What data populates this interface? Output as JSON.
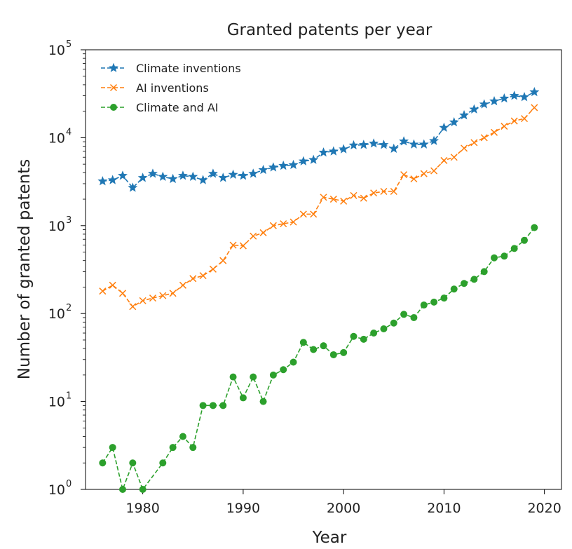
{
  "chart_data": {
    "type": "line",
    "title": "Granted patents per year",
    "xlabel": "Year",
    "ylabel": "Number of granted patents",
    "xlim": [
      1974.3,
      2021.7
    ],
    "ylim": [
      1,
      100000
    ],
    "yscale": "log",
    "xticks": [
      "1980",
      "1990",
      "2000",
      "2010",
      "2020"
    ],
    "yticks": [
      {
        "base": "10",
        "exp": "0"
      },
      {
        "base": "10",
        "exp": "1"
      },
      {
        "base": "10",
        "exp": "2"
      },
      {
        "base": "10",
        "exp": "3"
      },
      {
        "base": "10",
        "exp": "4"
      },
      {
        "base": "10",
        "exp": "5"
      }
    ],
    "legend_position": "top-left",
    "x": [
      1976,
      1977,
      1978,
      1979,
      1980,
      1981,
      1982,
      1983,
      1984,
      1985,
      1986,
      1987,
      1988,
      1989,
      1990,
      1991,
      1992,
      1993,
      1994,
      1995,
      1996,
      1997,
      1998,
      1999,
      2000,
      2001,
      2002,
      2003,
      2004,
      2005,
      2006,
      2007,
      2008,
      2009,
      2010,
      2011,
      2012,
      2013,
      2014,
      2015,
      2016,
      2017,
      2018,
      2019
    ],
    "series": [
      {
        "name": "Climate inventions",
        "color": "#1f77b4",
        "marker": "star",
        "values": [
          3200,
          3300,
          3700,
          2700,
          3500,
          3900,
          3600,
          3400,
          3700,
          3600,
          3300,
          3900,
          3500,
          3800,
          3700,
          3900,
          4300,
          4600,
          4800,
          4900,
          5400,
          5600,
          6800,
          7000,
          7400,
          8200,
          8300,
          8600,
          8300,
          7500,
          9100,
          8400,
          8400,
          9200,
          13000,
          15000,
          18000,
          21000,
          24000,
          26000,
          28000,
          30000,
          29000,
          33000
        ]
      },
      {
        "name": "AI inventions",
        "color": "#ff7f0e",
        "marker": "x",
        "values": [
          180,
          210,
          170,
          120,
          140,
          150,
          160,
          170,
          210,
          250,
          270,
          320,
          400,
          600,
          590,
          760,
          830,
          1000,
          1050,
          1100,
          1350,
          1350,
          2100,
          2000,
          1900,
          2200,
          2050,
          2350,
          2450,
          2450,
          3800,
          3400,
          3900,
          4200,
          5500,
          6000,
          7600,
          8800,
          10000,
          11500,
          13500,
          15500,
          16500,
          22000
        ]
      },
      {
        "name": "Climate and AI",
        "color": "#2ca02c",
        "marker": "circle",
        "values": [
          2,
          3,
          1,
          2,
          1,
          null,
          2,
          3,
          4,
          3,
          9,
          9,
          9,
          19,
          11,
          19,
          10,
          20,
          23,
          28,
          47,
          39,
          43,
          34,
          36,
          55,
          51,
          60,
          67,
          78,
          98,
          90,
          125,
          135,
          150,
          190,
          220,
          245,
          300,
          430,
          450,
          550,
          680,
          950
        ]
      }
    ]
  }
}
